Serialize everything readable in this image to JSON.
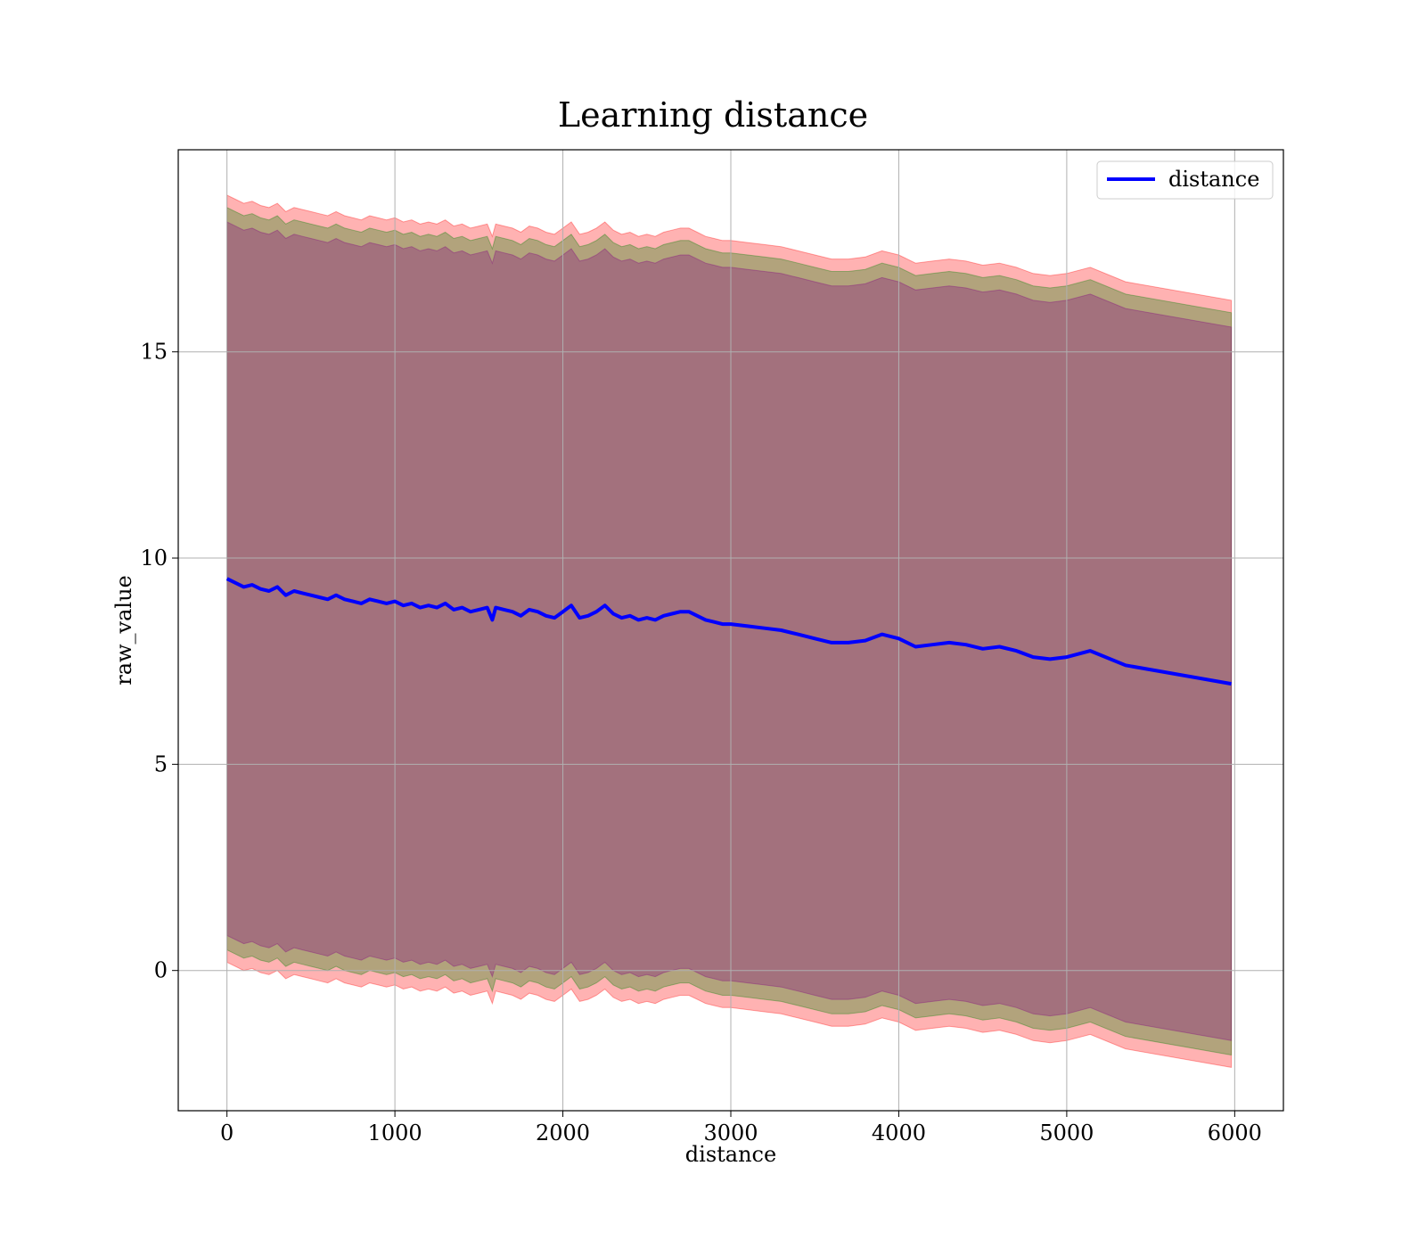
{
  "chart_data": {
    "type": "area",
    "title": "Learning distance",
    "xlabel": "distance",
    "ylabel": "raw_value",
    "xlim": [
      -290,
      6290
    ],
    "ylim": [
      -3.4,
      19.9
    ],
    "x_ticks": [
      0,
      1000,
      2000,
      3000,
      4000,
      5000,
      6000
    ],
    "x_tick_labels": [
      "0",
      "1000",
      "2000",
      "3000",
      "4000",
      "5000",
      "6000"
    ],
    "y_ticks": [
      0,
      5,
      10,
      15
    ],
    "y_tick_labels": [
      "0",
      "5",
      "10",
      "15"
    ],
    "grid": true,
    "legend": {
      "position": "top-right",
      "entries": [
        "distance"
      ]
    },
    "colors": {
      "line": "#0000ff",
      "band_outer": "#ff0000",
      "band_middle": "#008000",
      "band_inner": "#800080",
      "grid": "#b0b0b0"
    },
    "series": [
      {
        "name": "distance",
        "x": [
          0,
          50,
          100,
          150,
          200,
          250,
          300,
          350,
          400,
          450,
          500,
          550,
          600,
          650,
          700,
          750,
          800,
          850,
          900,
          950,
          1000,
          1050,
          1100,
          1150,
          1200,
          1250,
          1300,
          1350,
          1400,
          1450,
          1500,
          1550,
          1580,
          1600,
          1650,
          1700,
          1750,
          1800,
          1850,
          1900,
          1950,
          2000,
          2050,
          2100,
          2150,
          2200,
          2250,
          2300,
          2350,
          2400,
          2450,
          2500,
          2550,
          2600,
          2650,
          2700,
          2750,
          2800,
          2850,
          2900,
          2950,
          3000,
          3100,
          3200,
          3300,
          3400,
          3500,
          3600,
          3700,
          3800,
          3900,
          4000,
          4100,
          4200,
          4300,
          4400,
          4500,
          4600,
          4700,
          4800,
          4900,
          5000,
          5140,
          5350,
          5980
        ],
        "y": [
          9.5,
          9.4,
          9.3,
          9.35,
          9.25,
          9.2,
          9.3,
          9.1,
          9.2,
          9.15,
          9.1,
          9.05,
          9.0,
          9.1,
          9.0,
          8.95,
          8.9,
          9.0,
          8.95,
          8.9,
          8.95,
          8.85,
          8.9,
          8.8,
          8.85,
          8.8,
          8.9,
          8.75,
          8.8,
          8.7,
          8.75,
          8.8,
          8.5,
          8.8,
          8.75,
          8.7,
          8.6,
          8.75,
          8.7,
          8.6,
          8.55,
          8.7,
          8.85,
          8.55,
          8.6,
          8.7,
          8.85,
          8.65,
          8.55,
          8.6,
          8.5,
          8.55,
          8.5,
          8.6,
          8.65,
          8.7,
          8.7,
          8.6,
          8.5,
          8.45,
          8.4,
          8.4,
          8.35,
          8.3,
          8.25,
          8.15,
          8.05,
          7.95,
          7.95,
          8.0,
          8.15,
          8.05,
          7.85,
          7.9,
          7.95,
          7.9,
          7.8,
          7.85,
          7.75,
          7.6,
          7.55,
          7.6,
          7.75,
          7.4,
          6.95
        ]
      }
    ],
    "bands": [
      {
        "name": "outer",
        "lower_offset": -9.3,
        "upper_offset": 9.3
      },
      {
        "name": "middle",
        "lower_offset": -9.0,
        "upper_offset": 9.0
      },
      {
        "name": "inner",
        "lower_offset": -8.65,
        "upper_offset": 8.65
      }
    ]
  }
}
